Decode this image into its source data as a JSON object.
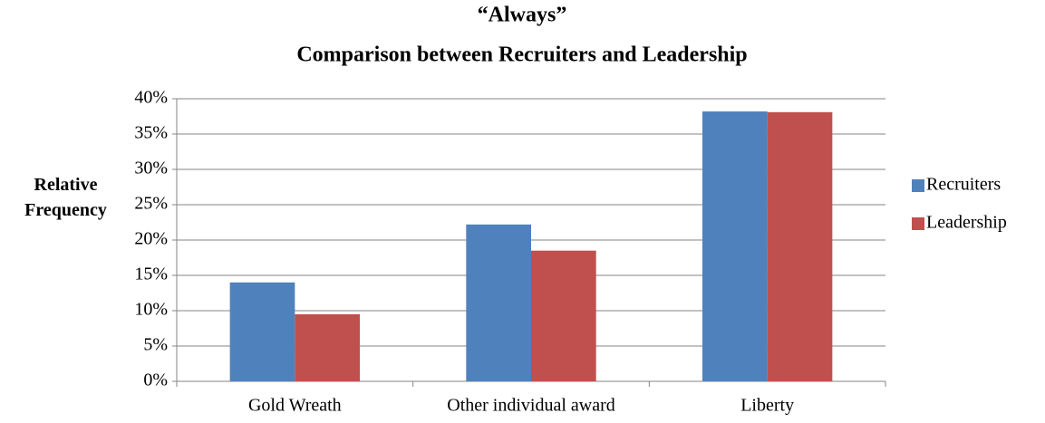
{
  "chart_data": {
    "type": "bar",
    "title": "“Always”",
    "subtitle": "Comparison between Recruiters and Leadership",
    "y_label": "Relative Frequency",
    "categories": [
      "Gold Wreath",
      "Other individual award",
      "Liberty"
    ],
    "series": [
      {
        "name": "Recruiters",
        "color": "#4f81bd",
        "values": [
          14,
          22.2,
          38.2
        ]
      },
      {
        "name": "Leadership",
        "color": "#c0504d",
        "values": [
          9.5,
          18.5,
          38.1
        ]
      }
    ],
    "ylim": [
      0,
      40
    ],
    "yticks": [
      {
        "value": 0,
        "label": "0%"
      },
      {
        "value": 5,
        "label": "5%"
      },
      {
        "value": 10,
        "label": "10%"
      },
      {
        "value": 15,
        "label": "15%"
      },
      {
        "value": 20,
        "label": "20%"
      },
      {
        "value": 25,
        "label": "25%"
      },
      {
        "value": 30,
        "label": "30%"
      },
      {
        "value": 35,
        "label": "35%"
      },
      {
        "value": 40,
        "label": "40%"
      }
    ],
    "grid": true,
    "legend": "right"
  }
}
